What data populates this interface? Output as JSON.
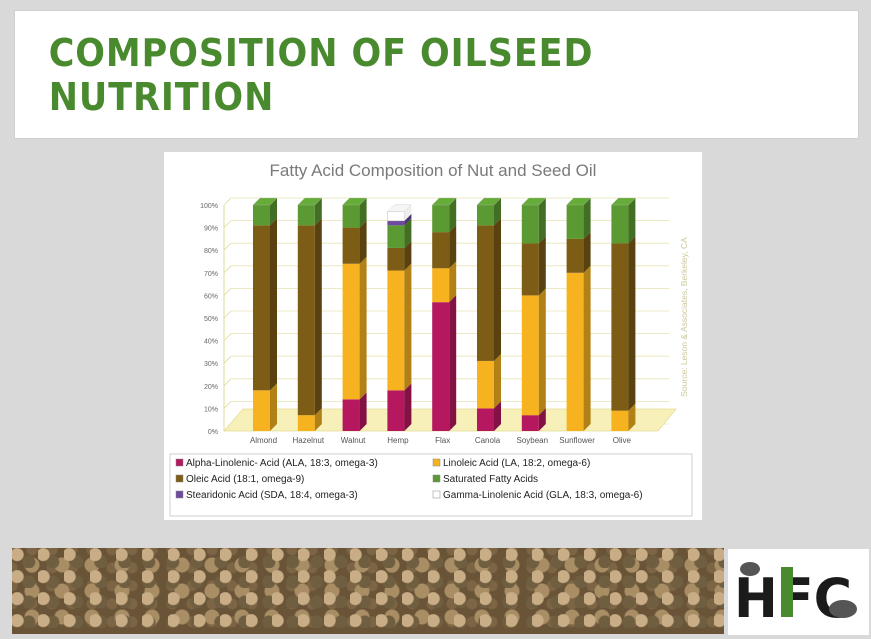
{
  "slide": {
    "title": "COMPOSITION OF OILSEED NUTRITION",
    "logo_text": "HFC"
  },
  "chart_data": {
    "type": "bar",
    "stacked": true,
    "title": "Fatty Acid Composition of Nut and Seed Oil",
    "source_note": "Source: Leson & Associates, Berkeley, CA",
    "categories": [
      "Almond",
      "Hazelnut",
      "Walnut",
      "Hemp",
      "Flax",
      "Canola",
      "Soybean",
      "Sunflower",
      "Olive"
    ],
    "yticks": [
      "0%",
      "10%",
      "20%",
      "30%",
      "40%",
      "50%",
      "60%",
      "70%",
      "80%",
      "90%",
      "100%"
    ],
    "ylim": [
      0,
      100
    ],
    "grid": true,
    "legend_position": "bottom",
    "series": [
      {
        "name": "Alpha-Linolenic- Acid (ALA, 18:3, omega-3)",
        "color": "#b5185e",
        "values": [
          0,
          0,
          14,
          18,
          57,
          10,
          7,
          0,
          0
        ]
      },
      {
        "name": "Linoleic Acid (LA, 18:2, omega-6)",
        "color": "#f6b21f",
        "values": [
          18,
          7,
          60,
          53,
          15,
          21,
          53,
          70,
          9
        ]
      },
      {
        "name": "Oleic Acid (18:1, omega-9)",
        "color": "#7d5c16",
        "values": [
          73,
          84,
          16,
          10,
          16,
          60,
          23,
          15,
          74
        ]
      },
      {
        "name": "Saturated Fatty Acids",
        "color": "#5b9a32",
        "values": [
          9,
          9,
          10,
          10,
          12,
          9,
          17,
          15,
          17
        ]
      },
      {
        "name": "Stearidonic Acid (SDA, 18:4, omega-3)",
        "color": "#6f4aa0",
        "values": [
          0,
          0,
          0,
          2,
          0,
          0,
          0,
          0,
          0
        ]
      },
      {
        "name": "Gamma-Linolenic Acid (GLA, 18:3, omega-6)",
        "color": "#ffffff",
        "values": [
          0,
          0,
          0,
          4,
          0,
          0,
          0,
          0,
          0
        ]
      }
    ],
    "legend_order": [
      0,
      1,
      2,
      3,
      4,
      5
    ]
  }
}
